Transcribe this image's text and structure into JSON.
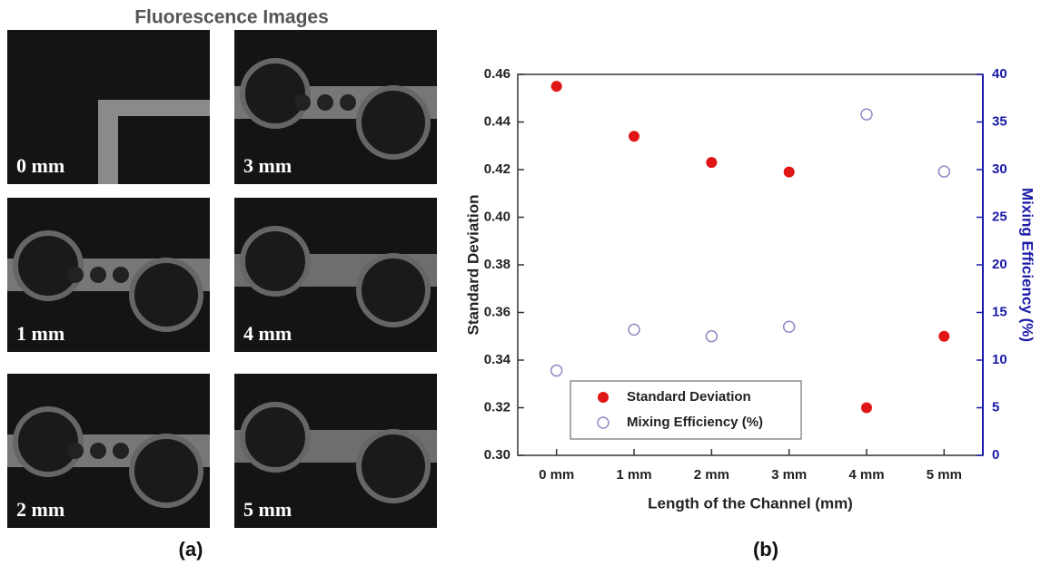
{
  "panel_a": {
    "title": "Fluorescence Images",
    "images": [
      {
        "label": "0 mm"
      },
      {
        "label": "3 mm"
      },
      {
        "label": "1 mm"
      },
      {
        "label": "4 mm"
      },
      {
        "label": "2 mm"
      },
      {
        "label": "5 mm"
      }
    ]
  },
  "captions": [
    "(a)",
    "(b)"
  ],
  "chart_data": {
    "type": "scatter",
    "x_label": "Length of the Channel (mm)",
    "y_label": "Standard Deviation",
    "y2_label": "Mixing Efficiency (%)",
    "categories": [
      "0 mm",
      "1 mm",
      "2 mm",
      "3 mm",
      "4 mm",
      "5 mm"
    ],
    "series": [
      {
        "name": "Standard Deviation",
        "color": "#e01515",
        "marker": "filled",
        "axis": "y",
        "values": [
          0.455,
          0.434,
          0.423,
          0.419,
          0.32,
          0.35
        ]
      },
      {
        "name": "Mixing Efficiency (%)",
        "color": "#8c8cc4",
        "marker": "hollow",
        "axis": "y2",
        "values": [
          8.9,
          13.2,
          12.5,
          13.5,
          35.8,
          29.8
        ]
      }
    ],
    "ylim": [
      0.3,
      0.46
    ],
    "yticks": [
      {
        "value": 0.3,
        "label": "0.30"
      },
      0.32,
      0.34,
      0.36,
      0.38,
      {
        "value": 0.4,
        "label": "0.40"
      },
      0.42,
      0.44,
      0.46
    ],
    "y2lim": [
      0,
      40
    ],
    "y2ticks": [
      0,
      5,
      10,
      15,
      20,
      25,
      30,
      35,
      40
    ],
    "y2_color": "#1a1aa8",
    "legend": "lower-left"
  }
}
